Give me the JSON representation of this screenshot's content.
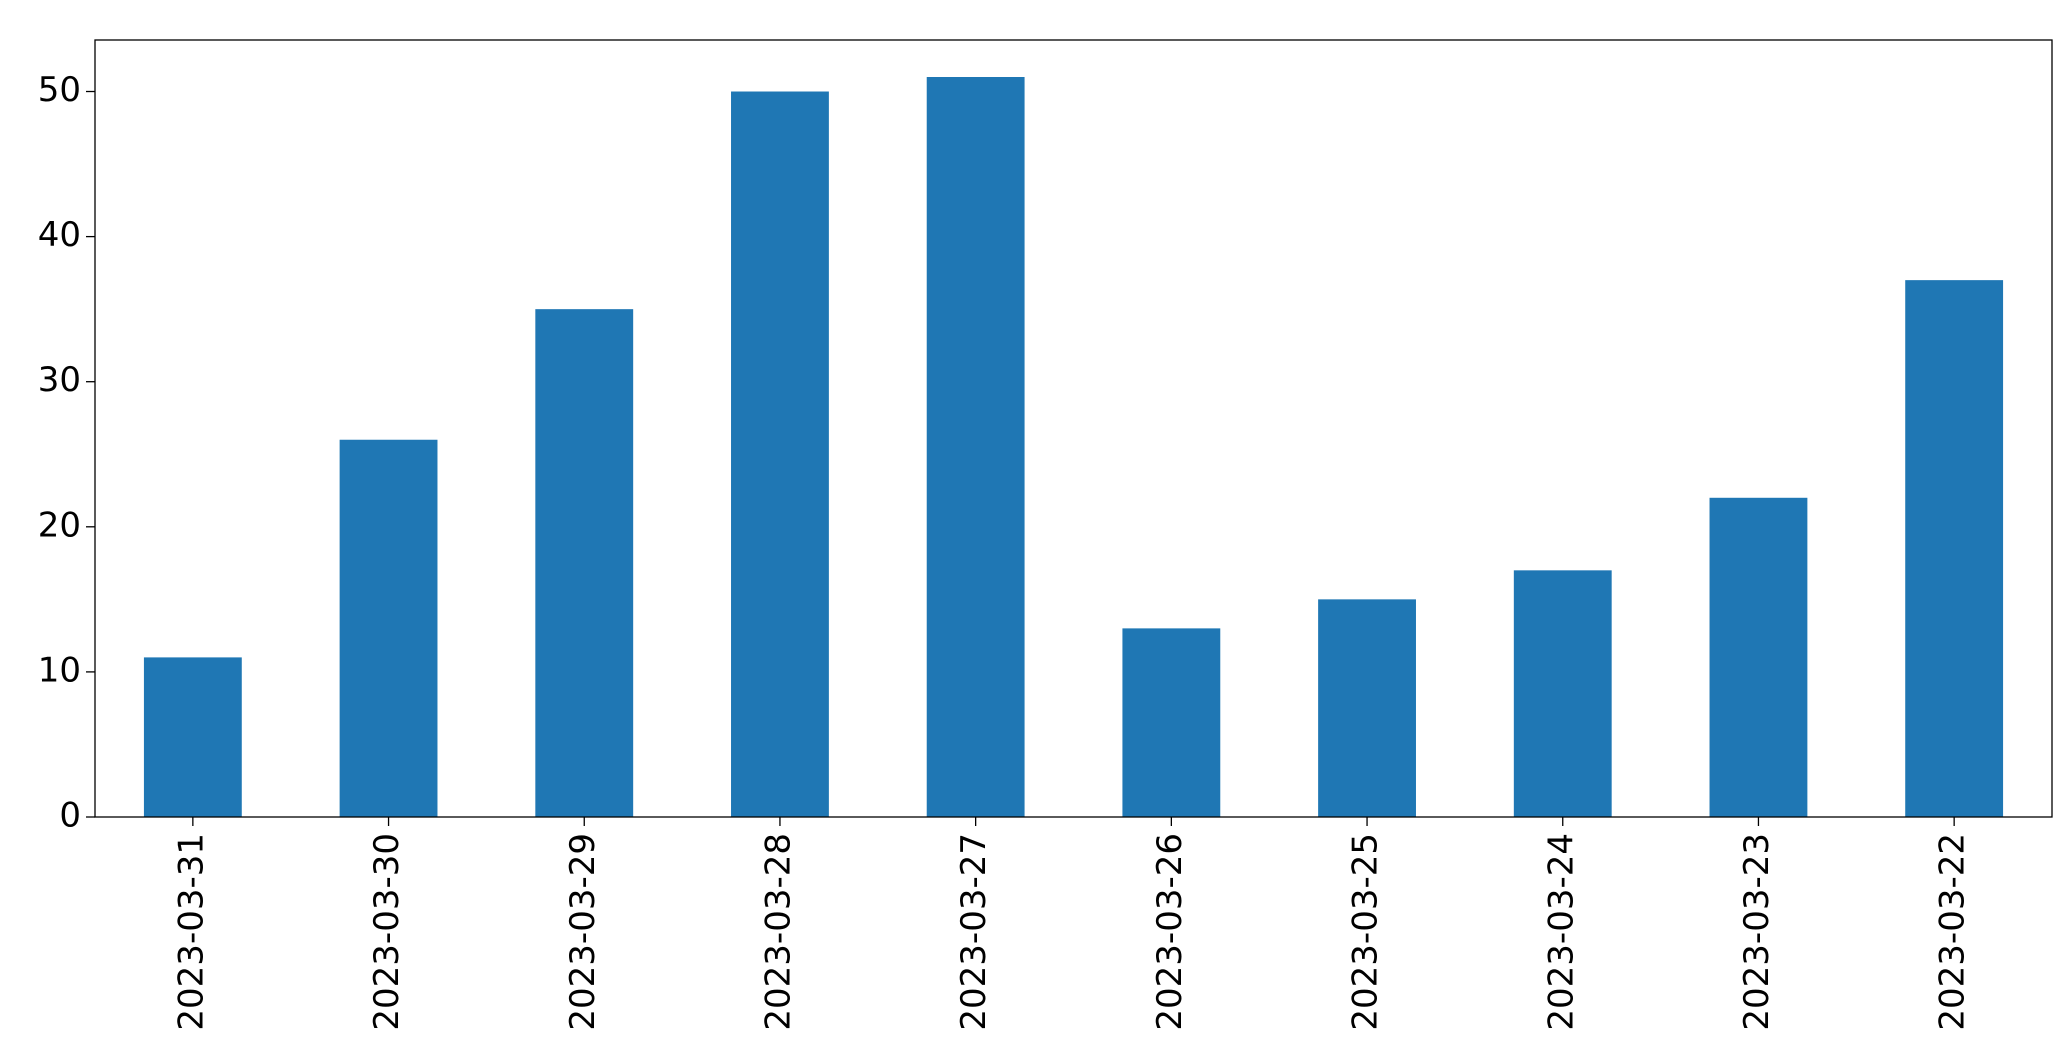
{
  "chart_data": {
    "type": "bar",
    "categories": [
      "2023-03-31",
      "2023-03-30",
      "2023-03-29",
      "2023-03-28",
      "2023-03-27",
      "2023-03-26",
      "2023-03-25",
      "2023-03-24",
      "2023-03-23",
      "2023-03-22"
    ],
    "values": [
      11,
      26,
      35,
      50,
      51,
      13,
      15,
      17,
      22,
      37
    ],
    "color": "#1f77b4",
    "ylim": [
      0,
      53.55
    ],
    "yticks": [
      0,
      10,
      20,
      30,
      40,
      50
    ],
    "grid": false
  }
}
